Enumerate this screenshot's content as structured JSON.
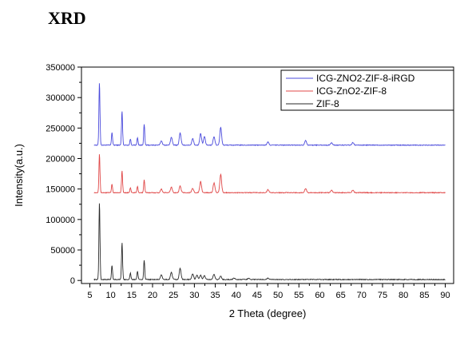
{
  "page_title": "XRD",
  "chart_data": {
    "type": "line",
    "xlabel": "2 Theta (degree)",
    "ylabel": "Intensity(a.u.)",
    "xlim": [
      3,
      92
    ],
    "ylim": [
      -5000,
      350000
    ],
    "x_ticks": [
      5,
      10,
      15,
      20,
      25,
      30,
      35,
      40,
      45,
      50,
      55,
      60,
      65,
      70,
      75,
      80,
      85,
      90
    ],
    "y_ticks": [
      0,
      50000,
      100000,
      150000,
      200000,
      250000,
      300000,
      350000
    ],
    "x_tick_labels": [
      "5",
      "10",
      "15",
      "20",
      "25",
      "30",
      "35",
      "40",
      "45",
      "50",
      "55",
      "60",
      "65",
      "70",
      "75",
      "80",
      "85",
      "90"
    ],
    "y_tick_labels": [
      "0",
      "50000",
      "100000",
      "150000",
      "200000",
      "250000",
      "300000",
      "350000"
    ],
    "legend_position": "top-right",
    "grid": false,
    "series": [
      {
        "name": "ICG-ZNO2-ZIF-8-iRGD",
        "color": "#4b4bdc",
        "baseline": 222000,
        "x_start": 6,
        "x_end": 90,
        "peaks": [
          {
            "x": 7.3,
            "y": 325000
          },
          {
            "x": 10.3,
            "y": 243000
          },
          {
            "x": 12.7,
            "y": 278000
          },
          {
            "x": 14.7,
            "y": 232000
          },
          {
            "x": 16.4,
            "y": 234000
          },
          {
            "x": 18.0,
            "y": 256000
          },
          {
            "x": 22.1,
            "y": 229000
          },
          {
            "x": 24.5,
            "y": 235000
          },
          {
            "x": 26.6,
            "y": 242000
          },
          {
            "x": 29.6,
            "y": 233000
          },
          {
            "x": 31.5,
            "y": 241000
          },
          {
            "x": 32.4,
            "y": 236000
          },
          {
            "x": 34.7,
            "y": 236000
          },
          {
            "x": 36.3,
            "y": 251000
          },
          {
            "x": 47.6,
            "y": 227000
          },
          {
            "x": 56.6,
            "y": 230000
          },
          {
            "x": 62.8,
            "y": 226000
          },
          {
            "x": 67.9,
            "y": 226000
          }
        ]
      },
      {
        "name": "ICG-ZnO2-ZIF-8",
        "color": "#e04848",
        "baseline": 144000,
        "x_start": 6,
        "x_end": 90,
        "peaks": [
          {
            "x": 7.3,
            "y": 208000
          },
          {
            "x": 10.3,
            "y": 158000
          },
          {
            "x": 12.7,
            "y": 180000
          },
          {
            "x": 14.7,
            "y": 152000
          },
          {
            "x": 16.4,
            "y": 154000
          },
          {
            "x": 18.0,
            "y": 165000
          },
          {
            "x": 22.1,
            "y": 150000
          },
          {
            "x": 24.5,
            "y": 153000
          },
          {
            "x": 26.6,
            "y": 155000
          },
          {
            "x": 29.6,
            "y": 151000
          },
          {
            "x": 31.5,
            "y": 162000
          },
          {
            "x": 34.7,
            "y": 160000
          },
          {
            "x": 36.3,
            "y": 174000
          },
          {
            "x": 47.6,
            "y": 149000
          },
          {
            "x": 56.6,
            "y": 151000
          },
          {
            "x": 62.8,
            "y": 148000
          },
          {
            "x": 67.9,
            "y": 148000
          }
        ]
      },
      {
        "name": "ZIF-8",
        "color": "#2a2a2a",
        "baseline": 1500,
        "x_start": 6,
        "x_end": 90,
        "peaks": [
          {
            "x": 7.3,
            "y": 128000
          },
          {
            "x": 10.3,
            "y": 25000
          },
          {
            "x": 12.7,
            "y": 62000
          },
          {
            "x": 14.7,
            "y": 12000
          },
          {
            "x": 16.4,
            "y": 15000
          },
          {
            "x": 18.0,
            "y": 33000
          },
          {
            "x": 22.1,
            "y": 9000
          },
          {
            "x": 24.5,
            "y": 13000
          },
          {
            "x": 26.6,
            "y": 20000
          },
          {
            "x": 29.6,
            "y": 11000
          },
          {
            "x": 30.6,
            "y": 9000
          },
          {
            "x": 31.5,
            "y": 9000
          },
          {
            "x": 32.4,
            "y": 8000
          },
          {
            "x": 34.7,
            "y": 10000
          },
          {
            "x": 36.3,
            "y": 7000
          },
          {
            "x": 39.5,
            "y": 4000
          },
          {
            "x": 43.0,
            "y": 4000
          },
          {
            "x": 47.6,
            "y": 4000
          }
        ]
      }
    ]
  }
}
